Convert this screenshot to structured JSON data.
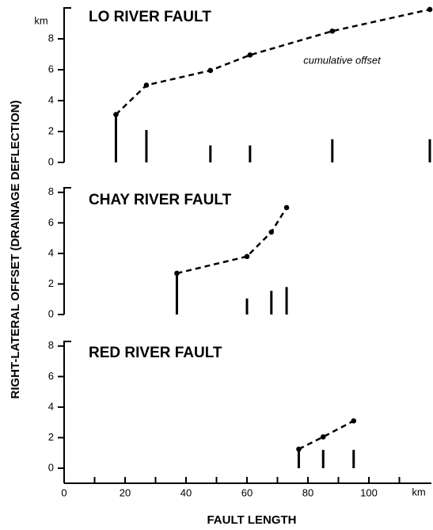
{
  "ylabel": "RIGHT-LATERAL  OFFSET  (DRAINAGE  DEFLECTION)",
  "xlabel": "FAULT  LENGTH",
  "xunit": "km",
  "yunit": "km",
  "xlim": [
    0,
    120
  ],
  "xticks": [
    0,
    20,
    40,
    60,
    80,
    100
  ],
  "xminorticks": [
    10,
    30,
    50,
    70,
    90,
    110
  ],
  "chart_data": [
    {
      "type": "line",
      "title": "LO RIVER FAULT",
      "annotation": "cumulative offset",
      "ylim": [
        0,
        10
      ],
      "yticks": [
        0,
        2,
        4,
        6,
        8
      ],
      "x": [
        17,
        27,
        48,
        61,
        88,
        120
      ],
      "series": [
        {
          "type": "line",
          "color": "#000000",
          "values": [
            3.1,
            5.0,
            5.95,
            6.95,
            8.5,
            9.9
          ]
        },
        {
          "type": "bar",
          "color": "#000000",
          "values": [
            3.1,
            2.1,
            1.1,
            1.1,
            1.5,
            1.5
          ]
        }
      ]
    },
    {
      "type": "line",
      "title": "CHAY RIVER FAULT",
      "ylim": [
        0,
        8.3
      ],
      "yticks": [
        0,
        2,
        4,
        6,
        8
      ],
      "x": [
        37,
        60,
        68,
        73
      ],
      "series": [
        {
          "type": "line",
          "color": "#000000",
          "values": [
            2.7,
            3.8,
            5.4,
            7.0
          ]
        },
        {
          "type": "bar",
          "color": "#000000",
          "values": [
            2.7,
            1.05,
            1.55,
            1.8
          ]
        }
      ]
    },
    {
      "type": "line",
      "title": "RED RIVER FAULT",
      "ylim": [
        0,
        8.3
      ],
      "yticks": [
        0,
        2,
        4,
        6,
        8
      ],
      "x": [
        77,
        85,
        95
      ],
      "series": [
        {
          "type": "line",
          "color": "#000000",
          "values": [
            1.25,
            2.05,
            3.1
          ]
        },
        {
          "type": "bar",
          "color": "#000000",
          "values": [
            1.2,
            1.2,
            1.2
          ]
        }
      ]
    }
  ]
}
